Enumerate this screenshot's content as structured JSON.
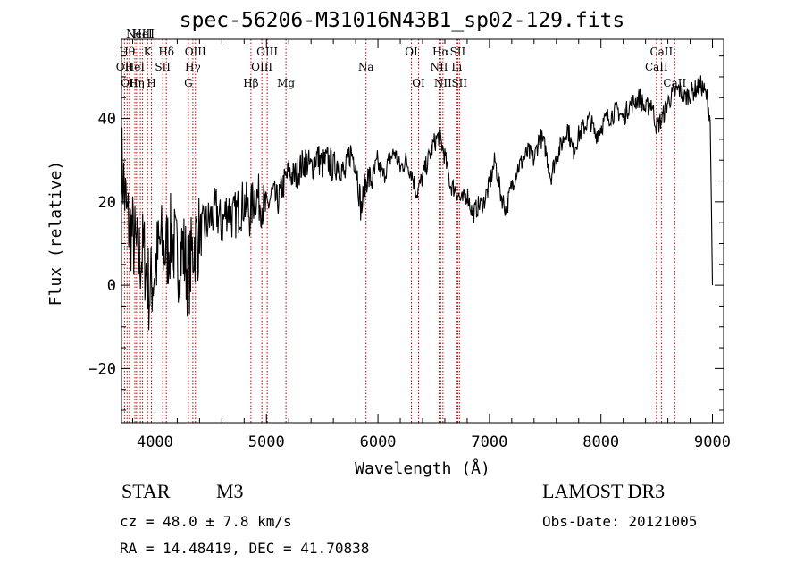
{
  "chart_data": {
    "type": "line",
    "title": "spec-56206-M31016N43B1_sp02-129.fits",
    "xlabel": "Wavelength (Å)",
    "ylabel": "Flux (relative)",
    "xlim": [
      3700,
      9100
    ],
    "ylim": [
      -33,
      59
    ],
    "xticks": [
      4000,
      5000,
      6000,
      7000,
      8000,
      9000
    ],
    "yticks": [
      -20,
      0,
      20,
      40
    ],
    "series": [
      {
        "name": "flux",
        "x": [
          3700,
          3750,
          3800,
          3850,
          3900,
          3950,
          4000,
          4050,
          4100,
          4150,
          4200,
          4250,
          4300,
          4350,
          4400,
          4450,
          4500,
          4550,
          4600,
          4650,
          4700,
          4750,
          4800,
          4850,
          4900,
          4950,
          5000,
          5050,
          5100,
          5150,
          5200,
          5250,
          5300,
          5350,
          5400,
          5450,
          5500,
          5550,
          5600,
          5650,
          5700,
          5750,
          5800,
          5850,
          5900,
          5950,
          6000,
          6050,
          6100,
          6150,
          6200,
          6250,
          6300,
          6350,
          6400,
          6450,
          6500,
          6550,
          6600,
          6650,
          6700,
          6750,
          6800,
          6850,
          6900,
          6950,
          7000,
          7050,
          7100,
          7150,
          7200,
          7250,
          7300,
          7350,
          7400,
          7450,
          7500,
          7550,
          7600,
          7650,
          7700,
          7750,
          7800,
          7850,
          7900,
          7950,
          8000,
          8050,
          8100,
          8150,
          8200,
          8250,
          8300,
          8350,
          8400,
          8450,
          8500,
          8550,
          8600,
          8650,
          8700,
          8750,
          8800,
          8850,
          8900,
          8950,
          8980,
          9000
        ],
        "values": [
          30,
          16,
          12,
          6,
          8,
          -2,
          4,
          10,
          8,
          12,
          6,
          9,
          2,
          10,
          12,
          14,
          16,
          18,
          14,
          19,
          16,
          18,
          20,
          17,
          22,
          20,
          18,
          22,
          20,
          24,
          27,
          26,
          28,
          30,
          28,
          31,
          29,
          30,
          28,
          30,
          26,
          32,
          30,
          18,
          26,
          25,
          29,
          26,
          30,
          32,
          28,
          30,
          27,
          22,
          26,
          30,
          34,
          36,
          31,
          24,
          23,
          20,
          22,
          17,
          19,
          20,
          24,
          30,
          22,
          18,
          24,
          28,
          30,
          32,
          30,
          36,
          33,
          26,
          31,
          34,
          38,
          32,
          36,
          38,
          40,
          36,
          38,
          40,
          41,
          42,
          40,
          43,
          44,
          45,
          42,
          44,
          38,
          40,
          44,
          46,
          47,
          45,
          46,
          47,
          48,
          45,
          40,
          0
        ]
      }
    ],
    "lines": [
      {
        "x": 3727,
        "label": "OII",
        "row": 2
      },
      {
        "x": 3750,
        "label": "Hθ",
        "row": 1
      },
      {
        "x": 3771,
        "label": "OII",
        "row": 3
      },
      {
        "x": 3820,
        "label": "HeI",
        "row": 2
      },
      {
        "x": 3835,
        "label": "Hη",
        "row": 3
      },
      {
        "x": 3869,
        "label": "NeIII",
        "row": 0
      },
      {
        "x": 3889,
        "label": "HeI",
        "row": 0
      },
      {
        "x": 3934,
        "label": "K",
        "row": 1
      },
      {
        "x": 3969,
        "label": "H",
        "row": 3
      },
      {
        "x": 4070,
        "label": "SII",
        "row": 2
      },
      {
        "x": 4102,
        "label": "Hδ",
        "row": 1
      },
      {
        "x": 4300,
        "label": "G",
        "row": 3
      },
      {
        "x": 4340,
        "label": "Hγ",
        "row": 2
      },
      {
        "x": 4363,
        "label": "OIII",
        "row": 1
      },
      {
        "x": 4861,
        "label": "Hβ",
        "row": 3
      },
      {
        "x": 4959,
        "label": "OIII",
        "row": 2
      },
      {
        "x": 5007,
        "label": "OIII",
        "row": 1
      },
      {
        "x": 5175,
        "label": "Mg",
        "row": 3
      },
      {
        "x": 5893,
        "label": "Na",
        "row": 2
      },
      {
        "x": 6300,
        "label": "OI",
        "row": 1
      },
      {
        "x": 6364,
        "label": "OI",
        "row": 3
      },
      {
        "x": 6548,
        "label": "NII",
        "row": 2
      },
      {
        "x": 6563,
        "label": "Hα",
        "row": 1
      },
      {
        "x": 6583,
        "label": "NII",
        "row": 3
      },
      {
        "x": 6707,
        "label": "Li",
        "row": 2
      },
      {
        "x": 6716,
        "label": "SII",
        "row": 1
      },
      {
        "x": 6731,
        "label": "SII",
        "row": 3
      },
      {
        "x": 8498,
        "label": "CaII",
        "row": 2
      },
      {
        "x": 8542,
        "label": "CaII",
        "row": 1
      },
      {
        "x": 8662,
        "label": "CaII",
        "row": 3
      }
    ]
  },
  "info": {
    "class": "STAR",
    "subclass": "M3",
    "survey": "LAMOST DR3",
    "cz": "cz = 48.0 ± 7.8 km/s",
    "obs_date": "Obs-Date: 20121005",
    "coords": "RA =  14.48419, DEC =  41.70838"
  }
}
